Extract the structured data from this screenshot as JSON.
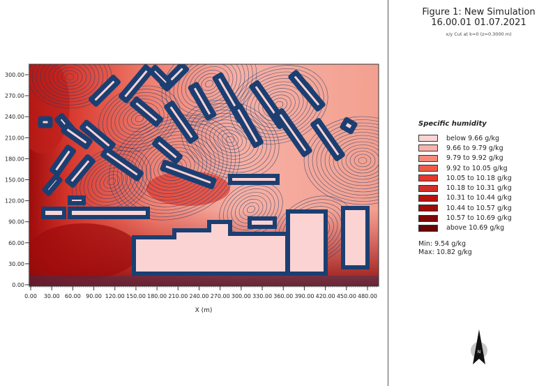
{
  "header": {
    "title_line1": "Figure 1: New Simulation",
    "title_line2": "16.00.01 01.07.2021",
    "subtitle": "x/y Cut at k=0 (z=0.3000 m)"
  },
  "legend": {
    "title": "Specific humidity",
    "items": [
      {
        "label": "below 9.66 g/kg",
        "color": "#fcd3d3"
      },
      {
        "label": "9.66 to 9.79 g/kg",
        "color": "#f9b3aa"
      },
      {
        "label": "9.79 to 9.92 g/kg",
        "color": "#f58a7a"
      },
      {
        "label": "9.92 to 10.05 g/kg",
        "color": "#ef5a48"
      },
      {
        "label": "10.05 to 10.18 g/kg",
        "color": "#e8352a"
      },
      {
        "label": "10.18 to 10.31 g/kg",
        "color": "#cf2f28"
      },
      {
        "label": "10.31 to 10.44 g/kg",
        "color": "#b8110f"
      },
      {
        "label": "10.44 to 10.57 g/kg",
        "color": "#a00a0a"
      },
      {
        "label": "10.57 to 10.69 g/kg",
        "color": "#7e0606"
      },
      {
        "label": "above 10.69 g/kg",
        "color": "#650404"
      }
    ],
    "min": "Min: 9.54 g/kg",
    "max": "Max: 10.82 g/kg"
  },
  "chart_data": {
    "type": "heatmap",
    "title": "Figure 1: New Simulation",
    "xlabel": "X (m)",
    "ylabel": "",
    "xlim": [
      0,
      495
    ],
    "ylim": [
      -5,
      315
    ],
    "x_ticks": [
      "0.00",
      "30.00",
      "60.00",
      "90.00",
      "120.00",
      "150.00",
      "180.00",
      "210.00",
      "240.00",
      "270.00",
      "300.00",
      "330.00",
      "360.00",
      "390.00",
      "420.00",
      "450.00",
      "480.00"
    ],
    "y_ticks": [
      "0.00",
      "30.00",
      "60.00",
      "90.00",
      "120.00",
      "150.00",
      "180.00",
      "210.00",
      "240.00",
      "270.00",
      "300.00"
    ],
    "variable": "Specific humidity",
    "unit": "g/kg",
    "min": 9.54,
    "max": 10.82,
    "contour_line_color": "#1b3f72",
    "building_color": "#fcd3d3"
  },
  "north_arrow": {
    "label": "N"
  }
}
